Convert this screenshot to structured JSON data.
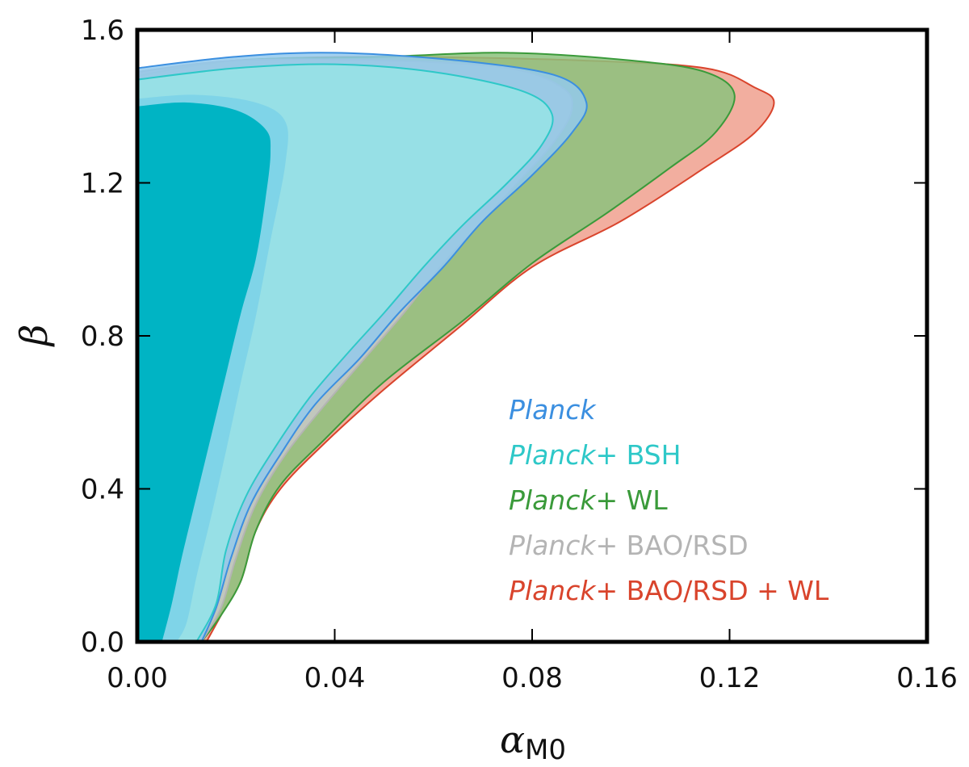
{
  "chart_data": {
    "type": "contour",
    "title": "",
    "xlabel": "α",
    "xlabel_sub": "M0",
    "ylabel": "β",
    "xlim": [
      0.0,
      0.16
    ],
    "ylim": [
      0.0,
      1.6
    ],
    "x_ticks": [
      "0.00",
      "0.04",
      "0.08",
      "0.12",
      "0.16"
    ],
    "y_ticks": [
      "0.0",
      "0.4",
      "0.8",
      "1.2",
      "1.6"
    ],
    "legend_position": "lower-right",
    "series": [
      {
        "name": "Planck+ BAO/RSD + WL",
        "legend_italic": "Planck",
        "legend_rest": "+ BAO/RSD + WL",
        "color": "#d9442c",
        "fill": "#f0a08e",
        "outer_contour": [
          [
            0.0,
            1.49
          ],
          [
            0.02,
            1.52
          ],
          [
            0.05,
            1.53
          ],
          [
            0.09,
            1.52
          ],
          [
            0.115,
            1.5
          ],
          [
            0.125,
            1.45
          ],
          [
            0.129,
            1.41
          ],
          [
            0.125,
            1.33
          ],
          [
            0.115,
            1.24
          ],
          [
            0.098,
            1.1
          ],
          [
            0.08,
            0.98
          ],
          [
            0.065,
            0.82
          ],
          [
            0.05,
            0.66
          ],
          [
            0.038,
            0.52
          ],
          [
            0.029,
            0.4
          ],
          [
            0.024,
            0.29
          ],
          [
            0.021,
            0.16
          ],
          [
            0.017,
            0.07
          ],
          [
            0.014,
            0.0
          ]
        ]
      },
      {
        "name": "Planck+ WL",
        "legend_italic": "Planck",
        "legend_rest": "+ WL",
        "color": "#3a9a3a",
        "fill": "#8cc27c",
        "outer_contour": [
          [
            0.0,
            1.48
          ],
          [
            0.02,
            1.52
          ],
          [
            0.05,
            1.53
          ],
          [
            0.075,
            1.54
          ],
          [
            0.1,
            1.52
          ],
          [
            0.115,
            1.49
          ],
          [
            0.121,
            1.43
          ],
          [
            0.117,
            1.33
          ],
          [
            0.108,
            1.24
          ],
          [
            0.095,
            1.12
          ],
          [
            0.08,
            0.99
          ],
          [
            0.066,
            0.84
          ],
          [
            0.05,
            0.68
          ],
          [
            0.038,
            0.53
          ],
          [
            0.029,
            0.41
          ],
          [
            0.024,
            0.29
          ],
          [
            0.021,
            0.16
          ],
          [
            0.017,
            0.07
          ],
          [
            0.013,
            0.0
          ]
        ]
      },
      {
        "name": "Planck+ BAO/RSD",
        "legend_italic": "Planck",
        "legend_rest": "+ BAO/RSD",
        "color": "#b4b4b4",
        "fill": "#c8c8c8",
        "outer_contour": [
          [
            0.0,
            1.49
          ],
          [
            0.02,
            1.52
          ],
          [
            0.05,
            1.52
          ],
          [
            0.075,
            1.5
          ],
          [
            0.086,
            1.45
          ],
          [
            0.088,
            1.39
          ],
          [
            0.084,
            1.3
          ],
          [
            0.077,
            1.2
          ],
          [
            0.07,
            1.1
          ],
          [
            0.062,
            0.99
          ],
          [
            0.054,
            0.86
          ],
          [
            0.046,
            0.74
          ],
          [
            0.038,
            0.62
          ],
          [
            0.03,
            0.49
          ],
          [
            0.024,
            0.36
          ],
          [
            0.02,
            0.22
          ],
          [
            0.017,
            0.09
          ],
          [
            0.013,
            0.0
          ]
        ]
      },
      {
        "name": "Planck",
        "legend_italic": "Planck",
        "legend_rest": "",
        "color": "#3b8fe0",
        "fill": "#93c9ec",
        "outer_contour": [
          [
            0.0,
            1.5
          ],
          [
            0.02,
            1.53
          ],
          [
            0.04,
            1.54
          ],
          [
            0.065,
            1.52
          ],
          [
            0.085,
            1.48
          ],
          [
            0.091,
            1.41
          ],
          [
            0.088,
            1.33
          ],
          [
            0.08,
            1.22
          ],
          [
            0.07,
            1.1
          ],
          [
            0.062,
            0.98
          ],
          [
            0.053,
            0.86
          ],
          [
            0.045,
            0.74
          ],
          [
            0.036,
            0.62
          ],
          [
            0.029,
            0.49
          ],
          [
            0.023,
            0.36
          ],
          [
            0.019,
            0.22
          ],
          [
            0.016,
            0.09
          ],
          [
            0.013,
            0.0
          ]
        ]
      },
      {
        "name": "Planck+ BSH",
        "legend_italic": "Planck",
        "legend_rest": "+ BSH",
        "color": "#2ec8c8",
        "fill": "#96e4e6",
        "outer_contour": [
          [
            0.0,
            1.47
          ],
          [
            0.02,
            1.5
          ],
          [
            0.04,
            1.51
          ],
          [
            0.06,
            1.49
          ],
          [
            0.078,
            1.44
          ],
          [
            0.084,
            1.38
          ],
          [
            0.082,
            1.3
          ],
          [
            0.075,
            1.2
          ],
          [
            0.066,
            1.09
          ],
          [
            0.058,
            0.98
          ],
          [
            0.05,
            0.86
          ],
          [
            0.043,
            0.76
          ],
          [
            0.035,
            0.64
          ],
          [
            0.028,
            0.51
          ],
          [
            0.022,
            0.38
          ],
          [
            0.018,
            0.24
          ],
          [
            0.016,
            0.1
          ],
          [
            0.012,
            0.0
          ]
        ],
        "inner_contour": [
          [
            0.0,
            1.4
          ],
          [
            0.01,
            1.41
          ],
          [
            0.02,
            1.39
          ],
          [
            0.026,
            1.34
          ],
          [
            0.027,
            1.28
          ],
          [
            0.026,
            1.16
          ],
          [
            0.024,
            1.0
          ],
          [
            0.021,
            0.86
          ],
          [
            0.018,
            0.7
          ],
          [
            0.015,
            0.54
          ],
          [
            0.012,
            0.38
          ],
          [
            0.009,
            0.22
          ],
          [
            0.007,
            0.1
          ],
          [
            0.005,
            0.0
          ]
        ]
      }
    ],
    "extra_layers": [
      {
        "name": "Planck inner 68% region",
        "fill": "#7fd4e8",
        "inner_contour": [
          [
            0.0,
            1.42
          ],
          [
            0.012,
            1.43
          ],
          [
            0.024,
            1.41
          ],
          [
            0.03,
            1.36
          ],
          [
            0.03,
            1.25
          ],
          [
            0.027,
            1.05
          ],
          [
            0.024,
            0.85
          ],
          [
            0.021,
            0.68
          ],
          [
            0.018,
            0.5
          ],
          [
            0.015,
            0.33
          ],
          [
            0.012,
            0.17
          ],
          [
            0.01,
            0.05
          ],
          [
            0.008,
            0.0
          ]
        ]
      }
    ]
  }
}
